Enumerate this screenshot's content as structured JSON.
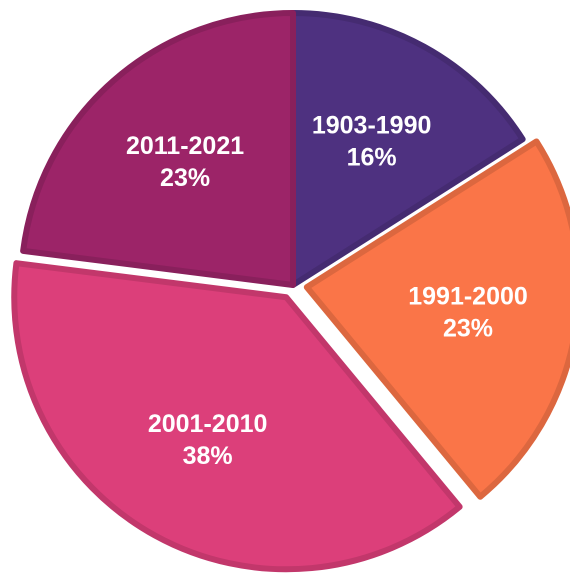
{
  "chart_data": {
    "type": "pie",
    "categories": [
      "1903-1990",
      "1991-2000",
      "2001-2010",
      "2011-2021"
    ],
    "values": [
      16,
      23,
      38,
      23
    ],
    "value_labels": [
      "16%",
      "23%",
      "38%",
      "23%"
    ],
    "colors": [
      "#4e3180",
      "#fa7548",
      "#dc3f7a",
      "#9c2468"
    ],
    "exploded": [
      false,
      true,
      true,
      false
    ],
    "start": "top",
    "direction": "clockwise"
  }
}
